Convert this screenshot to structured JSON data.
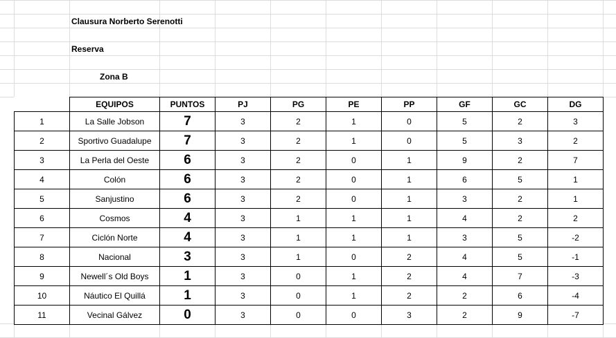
{
  "title": "Clausura Norberto Serenotti",
  "subtitle": "Reserva",
  "zone": "Zona B",
  "headers": [
    "EQUIPOS",
    "PUNTOS",
    "PJ",
    "PG",
    "PE",
    "PP",
    "GF",
    "GC",
    "DG"
  ],
  "rows": [
    {
      "pos": "1",
      "team": "La Salle Jobson",
      "pts": "7",
      "pj": "3",
      "pg": "2",
      "pe": "1",
      "pp": "0",
      "gf": "5",
      "gc": "2",
      "dg": "3"
    },
    {
      "pos": "2",
      "team": "Sportivo Guadalupe",
      "pts": "7",
      "pj": "3",
      "pg": "2",
      "pe": "1",
      "pp": "0",
      "gf": "5",
      "gc": "3",
      "dg": "2"
    },
    {
      "pos": "3",
      "team": "La Perla del Oeste",
      "pts": "6",
      "pj": "3",
      "pg": "2",
      "pe": "0",
      "pp": "1",
      "gf": "9",
      "gc": "2",
      "dg": "7"
    },
    {
      "pos": "4",
      "team": "Colón",
      "pts": "6",
      "pj": "3",
      "pg": "2",
      "pe": "0",
      "pp": "1",
      "gf": "6",
      "gc": "5",
      "dg": "1"
    },
    {
      "pos": "5",
      "team": "Sanjustino",
      "pts": "6",
      "pj": "3",
      "pg": "2",
      "pe": "0",
      "pp": "1",
      "gf": "3",
      "gc": "2",
      "dg": "1"
    },
    {
      "pos": "6",
      "team": "Cosmos",
      "pts": "4",
      "pj": "3",
      "pg": "1",
      "pe": "1",
      "pp": "1",
      "gf": "4",
      "gc": "2",
      "dg": "2"
    },
    {
      "pos": "7",
      "team": "Ciclón Norte",
      "pts": "4",
      "pj": "3",
      "pg": "1",
      "pe": "1",
      "pp": "1",
      "gf": "3",
      "gc": "5",
      "dg": "-2"
    },
    {
      "pos": "8",
      "team": "Nacional",
      "pts": "3",
      "pj": "3",
      "pg": "1",
      "pe": "0",
      "pp": "2",
      "gf": "4",
      "gc": "5",
      "dg": "-1"
    },
    {
      "pos": "9",
      "team": "Newell´s Old Boys",
      "pts": "1",
      "pj": "3",
      "pg": "0",
      "pe": "1",
      "pp": "2",
      "gf": "4",
      "gc": "7",
      "dg": "-3"
    },
    {
      "pos": "10",
      "team": "Náutico El Quillá",
      "pts": "1",
      "pj": "3",
      "pg": "0",
      "pe": "1",
      "pp": "2",
      "gf": "2",
      "gc": "6",
      "dg": "-4"
    },
    {
      "pos": "11",
      "team": "Vecinal Gálvez",
      "pts": "0",
      "pj": "3",
      "pg": "0",
      "pe": "0",
      "pp": "3",
      "gf": "2",
      "gc": "9",
      "dg": "-7"
    }
  ]
}
